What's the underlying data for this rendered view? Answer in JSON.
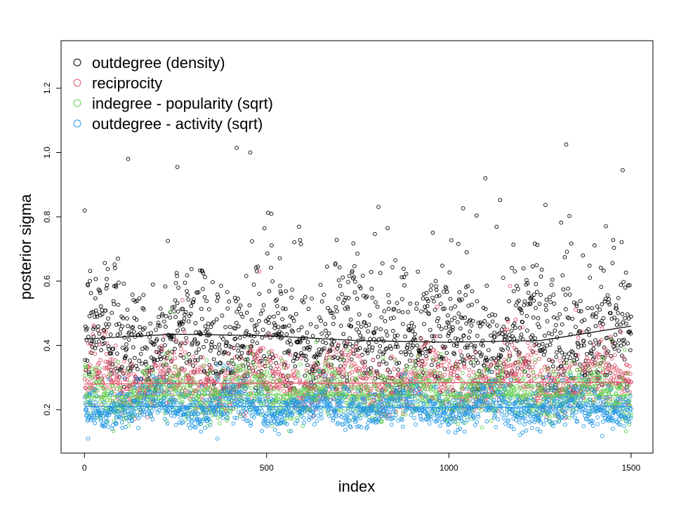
{
  "chart_data": {
    "type": "scatter",
    "title": "",
    "xlabel": "index",
    "ylabel": "posterior sigma",
    "xlim": [
      -64,
      1560
    ],
    "ylim": [
      0.065,
      1.348
    ],
    "xticks": [
      0,
      500,
      1000,
      1500
    ],
    "xtick_labels": [
      "0",
      "500",
      "1000",
      "1500"
    ],
    "yticks": [
      0.2,
      0.4,
      0.6,
      0.8,
      1.0,
      1.2
    ],
    "ytick_labels": [
      "0.2",
      "0.4",
      "0.6",
      "0.8",
      "1.0",
      "1.2"
    ],
    "grid": false,
    "legend_position": "top-left",
    "n_points_per_series": 1500,
    "series": [
      {
        "name": "outdegree (density)",
        "color": "#000000",
        "median": 0.42,
        "log_spread": 0.24,
        "min": 0.25,
        "trend_x": [
          0,
          250,
          500,
          750,
          1000,
          1250,
          1500
        ],
        "trend_y": [
          0.42,
          0.435,
          0.43,
          0.415,
          0.41,
          0.415,
          0.46
        ],
        "outliers": [
          [
            120,
            0.98
          ],
          [
            255,
            0.955
          ],
          [
            418,
            1.015
          ],
          [
            455,
            1.0
          ],
          [
            1100,
            0.92
          ],
          [
            1322,
            1.025
          ],
          [
            1477,
            0.945
          ]
        ]
      },
      {
        "name": "reciprocity",
        "color": "#DF536B",
        "median": 0.285,
        "log_spread": 0.16,
        "min": 0.17,
        "trend_x": [
          0,
          250,
          500,
          750,
          1000,
          1250,
          1500
        ],
        "trend_y": [
          0.28,
          0.282,
          0.283,
          0.283,
          0.284,
          0.285,
          0.285
        ],
        "outliers": [
          [
            480,
            0.63
          ]
        ]
      },
      {
        "name": "indegree - popularity (sqrt)",
        "color": "#61D04F",
        "median": 0.245,
        "log_spread": 0.17,
        "min": 0.11,
        "trend_x": [
          0,
          250,
          500,
          750,
          1000,
          1250,
          1500
        ],
        "trend_y": [
          0.24,
          0.245,
          0.246,
          0.245,
          0.244,
          0.245,
          0.245
        ],
        "outliers": []
      },
      {
        "name": "outdegree - activity (sqrt)",
        "color": "#2297E6",
        "median": 0.205,
        "log_spread": 0.15,
        "min": 0.1,
        "trend_x": [
          0,
          250,
          500,
          750,
          1000,
          1250,
          1500
        ],
        "trend_y": [
          0.21,
          0.21,
          0.21,
          0.208,
          0.207,
          0.208,
          0.21
        ],
        "outliers": [
          [
            10,
            0.11
          ],
          [
            365,
            0.11
          ]
        ]
      }
    ]
  }
}
